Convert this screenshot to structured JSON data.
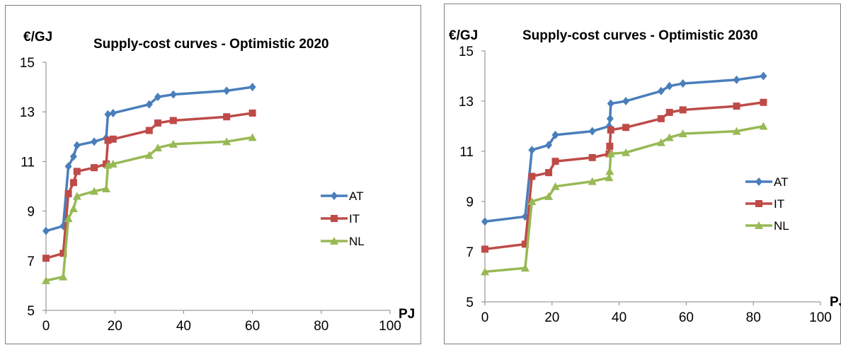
{
  "colors": {
    "AT": "#4a7ebb",
    "IT": "#be4b48",
    "NL": "#98b954"
  },
  "chart_data": [
    {
      "type": "line",
      "title": "Supply-cost curves - Optimistic 2020",
      "ylabel": "€/GJ",
      "xlabel": "PJ",
      "xlim": [
        0,
        100
      ],
      "ylim": [
        5,
        15
      ],
      "xticks": [
        "0",
        "20",
        "40",
        "60",
        "80",
        "100"
      ],
      "yticks": [
        "5",
        "7",
        "9",
        "11",
        "13",
        "15"
      ],
      "grid": false,
      "legend": "right",
      "series": [
        {
          "name": "AT",
          "marker": "diamond",
          "points": [
            [
              0,
              8.2
            ],
            [
              5,
              8.4
            ],
            [
              6.5,
              10.8
            ],
            [
              8,
              11.2
            ],
            [
              9,
              11.65
            ],
            [
              14,
              11.8
            ],
            [
              17.5,
              11.95
            ],
            [
              18,
              12.9
            ],
            [
              19.5,
              12.95
            ],
            [
              30,
              13.3
            ],
            [
              32.5,
              13.6
            ],
            [
              37,
              13.7
            ],
            [
              52.5,
              13.85
            ],
            [
              60,
              14.0
            ]
          ]
        },
        {
          "name": "IT",
          "marker": "square",
          "points": [
            [
              0,
              7.1
            ],
            [
              5,
              7.3
            ],
            [
              6.5,
              9.7
            ],
            [
              8,
              10.15
            ],
            [
              9,
              10.6
            ],
            [
              14,
              10.75
            ],
            [
              17.5,
              10.9
            ],
            [
              18,
              11.85
            ],
            [
              19.5,
              11.9
            ],
            [
              30,
              12.25
            ],
            [
              32.5,
              12.55
            ],
            [
              37,
              12.65
            ],
            [
              52.5,
              12.8
            ],
            [
              60,
              12.95
            ]
          ]
        },
        {
          "name": "NL",
          "marker": "triangle",
          "points": [
            [
              0,
              6.2
            ],
            [
              5,
              6.35
            ],
            [
              6.5,
              8.7
            ],
            [
              8,
              9.1
            ],
            [
              9,
              9.6
            ],
            [
              14,
              9.8
            ],
            [
              17.5,
              9.9
            ],
            [
              18,
              10.85
            ],
            [
              19.5,
              10.9
            ],
            [
              30,
              11.25
            ],
            [
              32.5,
              11.55
            ],
            [
              37,
              11.7
            ],
            [
              52.5,
              11.8
            ],
            [
              60,
              11.97
            ]
          ]
        }
      ]
    },
    {
      "type": "line",
      "title": "Supply-cost curves - Optimistic 2030",
      "ylabel": "€/GJ",
      "xlabel": "PJ",
      "xlim": [
        0,
        100
      ],
      "ylim": [
        5,
        15
      ],
      "xticks": [
        "0",
        "20",
        "40",
        "60",
        "80",
        "100"
      ],
      "yticks": [
        "5",
        "7",
        "9",
        "11",
        "13",
        "15"
      ],
      "grid": false,
      "legend": "right",
      "series": [
        {
          "name": "AT",
          "marker": "diamond",
          "points": [
            [
              0,
              8.2
            ],
            [
              12,
              8.4
            ],
            [
              14,
              11.05
            ],
            [
              19,
              11.25
            ],
            [
              21,
              11.65
            ],
            [
              32,
              11.8
            ],
            [
              37,
              12.0
            ],
            [
              37.3,
              12.3
            ],
            [
              37.5,
              12.9
            ],
            [
              42,
              13.0
            ],
            [
              52.5,
              13.4
            ],
            [
              55,
              13.6
            ],
            [
              59,
              13.7
            ],
            [
              75,
              13.85
            ],
            [
              83,
              14.0
            ]
          ]
        },
        {
          "name": "IT",
          "marker": "square",
          "points": [
            [
              0,
              7.1
            ],
            [
              12,
              7.3
            ],
            [
              14,
              10.0
            ],
            [
              19,
              10.15
            ],
            [
              21,
              10.6
            ],
            [
              32,
              10.75
            ],
            [
              37,
              10.9
            ],
            [
              37.2,
              11.2
            ],
            [
              37.5,
              11.85
            ],
            [
              42,
              11.95
            ],
            [
              52.5,
              12.3
            ],
            [
              55,
              12.55
            ],
            [
              59,
              12.65
            ],
            [
              75,
              12.8
            ],
            [
              83,
              12.95
            ]
          ]
        },
        {
          "name": "NL",
          "marker": "triangle",
          "points": [
            [
              0,
              6.2
            ],
            [
              12,
              6.35
            ],
            [
              14,
              9.0
            ],
            [
              19,
              9.2
            ],
            [
              21,
              9.6
            ],
            [
              32,
              9.8
            ],
            [
              37,
              9.95
            ],
            [
              37.2,
              10.2
            ],
            [
              37.5,
              10.9
            ],
            [
              42,
              10.95
            ],
            [
              52.5,
              11.35
            ],
            [
              55,
              11.55
            ],
            [
              59,
              11.7
            ],
            [
              75,
              11.8
            ],
            [
              83,
              12.0
            ]
          ]
        }
      ]
    }
  ]
}
